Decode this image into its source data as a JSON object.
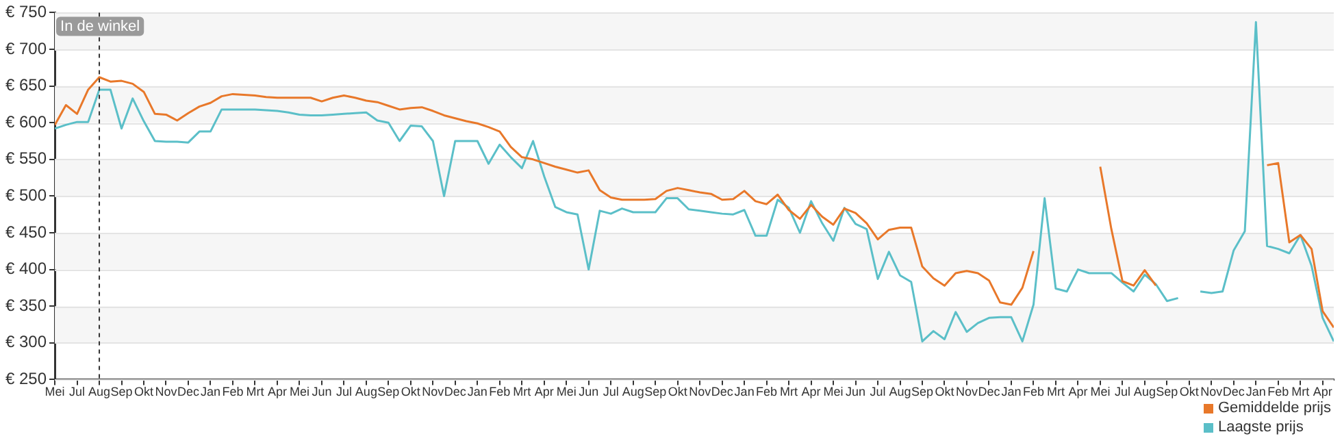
{
  "chart_data": {
    "type": "line",
    "marker": "none",
    "grid": "y",
    "legend": "bottom right",
    "categories": [
      "Mei",
      null,
      "Jul",
      null,
      "Aug",
      null,
      "Sep",
      null,
      "Okt",
      null,
      "Nov",
      null,
      "Dec",
      null,
      "Jan",
      null,
      "Feb",
      null,
      "Mrt",
      null,
      "Apr",
      null,
      "Mei",
      null,
      "Jun",
      null,
      "Jul",
      null,
      "Aug",
      null,
      "Sep",
      null,
      "Okt",
      null,
      "Nov",
      null,
      "Dec",
      null,
      "Jan",
      null,
      "Feb",
      null,
      "Mrt",
      null,
      "Apr",
      null,
      "Mei",
      null,
      "Jun",
      null,
      "Jul",
      null,
      "Aug",
      null,
      "Sep",
      null,
      "Okt",
      null,
      "Nov",
      null,
      "Dec",
      null,
      "Jan",
      null,
      "Feb",
      null,
      "Mrt",
      null,
      "Apr",
      null,
      "Mei",
      null,
      "Jun",
      null,
      "Jul",
      null,
      "Aug",
      null,
      "Sep",
      null,
      "Okt",
      null,
      "Nov",
      null,
      "Dec",
      null,
      "Jan",
      null,
      "Feb",
      null,
      "Mrt",
      null,
      "Apr",
      null,
      "Mei",
      null,
      "Jul",
      null,
      "Aug",
      null,
      "Sep",
      null,
      "Okt",
      null,
      "Nov",
      null,
      "Dec",
      null,
      "Jan",
      null,
      "Feb",
      null,
      "Mrt",
      null,
      "Apr",
      null
    ],
    "ylim": [
      250,
      750
    ],
    "yticks": [
      {
        "value": 250,
        "label": "€ 250"
      },
      {
        "value": 300,
        "label": "€ 300"
      },
      {
        "value": 350,
        "label": "€ 350"
      },
      {
        "value": 400,
        "label": "€ 400"
      },
      {
        "value": 450,
        "label": "€ 450"
      },
      {
        "value": 500,
        "label": "€ 500"
      },
      {
        "value": 550,
        "label": "€ 550"
      },
      {
        "value": 600,
        "label": "€ 600"
      },
      {
        "value": 650,
        "label": "€ 650"
      },
      {
        "value": 700,
        "label": "€ 700"
      },
      {
        "value": 750,
        "label": "€ 750"
      }
    ],
    "ref_lines": [
      {
        "axis": "x",
        "value": "Aug",
        "label": "In de winkel",
        "line_style": "dashed",
        "color": "#333333"
      }
    ],
    "series": [
      {
        "name": "Gemiddelde prijs",
        "color": "#e8782a",
        "values": [
          597,
          624,
          612,
          645,
          662,
          656,
          657,
          653,
          642,
          612,
          611,
          603,
          613,
          622,
          627,
          636,
          639,
          638,
          637,
          635,
          634,
          634,
          634,
          634,
          629,
          634,
          637,
          634,
          630,
          628,
          623,
          618,
          620,
          621,
          616,
          610,
          606,
          602,
          599,
          594,
          588,
          567,
          553,
          550,
          545,
          540,
          536,
          532,
          535,
          508,
          498,
          495,
          495,
          495,
          496,
          507,
          511,
          508,
          505,
          503,
          495,
          496,
          507,
          493,
          489,
          502,
          481,
          469,
          488,
          472,
          461,
          483,
          477,
          463,
          441,
          454,
          457,
          457,
          404,
          388,
          378,
          395,
          398,
          395,
          385,
          355,
          352,
          375,
          425,
          null,
          null,
          null,
          null,
          null,
          540,
          455,
          384,
          378,
          399,
          378,
          null,
          null,
          null,
          null,
          null,
          null,
          null,
          null,
          null,
          542,
          545,
          437,
          447,
          428,
          343,
          321
        ]
      },
      {
        "name": "Laagste prijs",
        "color": "#5bbfc8",
        "values": [
          592,
          597,
          601,
          601,
          645,
          645,
          592,
          633,
          602,
          575,
          574,
          574,
          573,
          588,
          588,
          618,
          618,
          618,
          618,
          617,
          616,
          614,
          611,
          610,
          610,
          611,
          612,
          613,
          614,
          603,
          600,
          575,
          596,
          595,
          575,
          500,
          575,
          575,
          575,
          544,
          570,
          553,
          538,
          575,
          527,
          485,
          478,
          475,
          400,
          480,
          476,
          483,
          478,
          478,
          478,
          497,
          497,
          482,
          480,
          478,
          476,
          475,
          481,
          446,
          446,
          495,
          484,
          450,
          493,
          463,
          439,
          484,
          462,
          455,
          387,
          424,
          392,
          383,
          302,
          316,
          305,
          342,
          315,
          327,
          334,
          335,
          335,
          302,
          352,
          497,
          374,
          370,
          400,
          395,
          395,
          395,
          382,
          370,
          393,
          380,
          357,
          361,
          null,
          370,
          368,
          370,
          426,
          452,
          737,
          432,
          428,
          422,
          447,
          405,
          334,
          302
        ]
      }
    ]
  }
}
